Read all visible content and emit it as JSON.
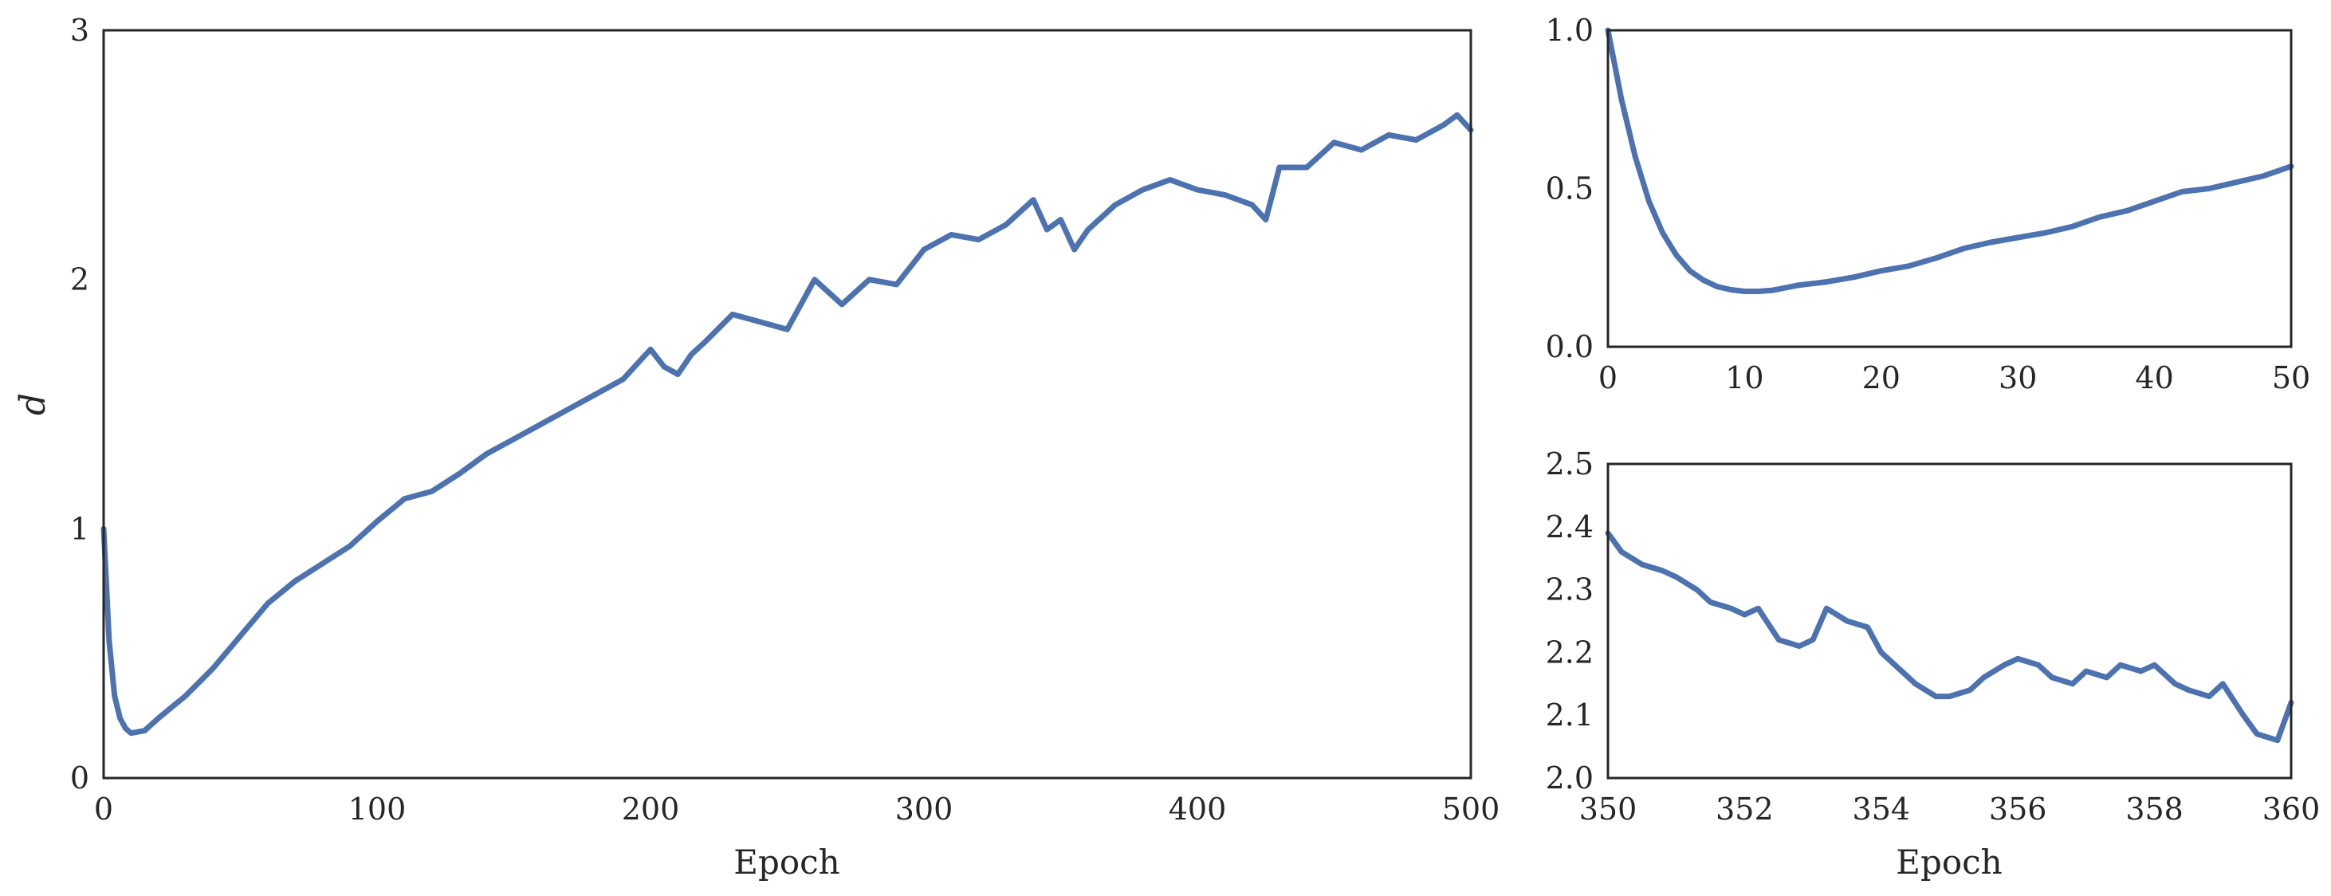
{
  "chart_data": [
    {
      "type": "line",
      "id": "main",
      "xlabel": "Epoch",
      "ylabel": "d",
      "xlim": [
        0,
        500
      ],
      "ylim": [
        0,
        3
      ],
      "xticks": [
        0,
        100,
        200,
        300,
        400,
        500
      ],
      "yticks": [
        0,
        1,
        2,
        3
      ],
      "xtick_labels": [
        "0",
        "100",
        "200",
        "300",
        "400",
        "500"
      ],
      "ytick_labels": [
        "0",
        "1",
        "2",
        "3"
      ],
      "grid": false,
      "series": [
        {
          "color": "#4c72b0",
          "x": [
            0,
            2,
            4,
            6,
            8,
            10,
            15,
            20,
            30,
            40,
            50,
            60,
            70,
            80,
            90,
            100,
            110,
            120,
            130,
            140,
            150,
            160,
            170,
            180,
            190,
            200,
            205,
            210,
            215,
            220,
            230,
            240,
            250,
            260,
            270,
            280,
            290,
            300,
            310,
            320,
            330,
            340,
            345,
            350,
            355,
            360,
            370,
            380,
            390,
            400,
            410,
            420,
            425,
            430,
            440,
            450,
            460,
            470,
            480,
            490,
            495,
            500
          ],
          "y": [
            1.0,
            0.55,
            0.33,
            0.24,
            0.2,
            0.18,
            0.19,
            0.24,
            0.33,
            0.44,
            0.57,
            0.7,
            0.79,
            0.86,
            0.93,
            1.03,
            1.12,
            1.15,
            1.22,
            1.3,
            1.36,
            1.42,
            1.48,
            1.54,
            1.6,
            1.72,
            1.65,
            1.62,
            1.7,
            1.75,
            1.86,
            1.83,
            1.8,
            2.0,
            1.9,
            2.0,
            1.98,
            2.12,
            2.18,
            2.16,
            2.22,
            2.32,
            2.2,
            2.24,
            2.12,
            2.2,
            2.3,
            2.36,
            2.4,
            2.36,
            2.34,
            2.3,
            2.24,
            2.45,
            2.45,
            2.55,
            2.52,
            2.58,
            2.56,
            2.62,
            2.66,
            2.6
          ]
        }
      ]
    },
    {
      "type": "line",
      "id": "inset-top",
      "xlabel": "",
      "ylabel": "",
      "xlim": [
        0,
        50
      ],
      "ylim": [
        0.0,
        1.0
      ],
      "xticks": [
        0,
        10,
        20,
        30,
        40,
        50
      ],
      "yticks": [
        0.0,
        0.5,
        1.0
      ],
      "xtick_labels": [
        "0",
        "10",
        "20",
        "30",
        "40",
        "50"
      ],
      "ytick_labels": [
        "0.0",
        "0.5",
        "1.0"
      ],
      "grid": false,
      "series": [
        {
          "color": "#4c72b0",
          "x": [
            0,
            1,
            2,
            3,
            4,
            5,
            6,
            7,
            8,
            9,
            10,
            11,
            12,
            14,
            16,
            18,
            20,
            22,
            24,
            26,
            28,
            30,
            32,
            34,
            36,
            38,
            40,
            42,
            44,
            46,
            48,
            50
          ],
          "y": [
            1.0,
            0.78,
            0.6,
            0.46,
            0.36,
            0.29,
            0.24,
            0.21,
            0.19,
            0.18,
            0.175,
            0.175,
            0.178,
            0.195,
            0.205,
            0.22,
            0.24,
            0.255,
            0.28,
            0.31,
            0.33,
            0.345,
            0.36,
            0.38,
            0.41,
            0.43,
            0.46,
            0.49,
            0.5,
            0.52,
            0.54,
            0.57
          ]
        }
      ]
    },
    {
      "type": "line",
      "id": "inset-bottom",
      "xlabel": "Epoch",
      "ylabel": "",
      "xlim": [
        350,
        360
      ],
      "ylim": [
        2.0,
        2.5
      ],
      "xticks": [
        350,
        352,
        354,
        356,
        358,
        360
      ],
      "yticks": [
        2.0,
        2.1,
        2.2,
        2.3,
        2.4,
        2.5
      ],
      "xtick_labels": [
        "350",
        "352",
        "354",
        "356",
        "358",
        "360"
      ],
      "ytick_labels": [
        "2.0",
        "2.1",
        "2.2",
        "2.3",
        "2.4",
        "2.5"
      ],
      "grid": false,
      "series": [
        {
          "color": "#4c72b0",
          "x": [
            350.0,
            350.2,
            350.5,
            350.8,
            351.0,
            351.3,
            351.5,
            351.8,
            352.0,
            352.2,
            352.5,
            352.8,
            353.0,
            353.2,
            353.5,
            353.8,
            354.0,
            354.3,
            354.5,
            354.8,
            355.0,
            355.3,
            355.5,
            355.8,
            356.0,
            356.3,
            356.5,
            356.8,
            357.0,
            357.3,
            357.5,
            357.8,
            358.0,
            358.3,
            358.5,
            358.8,
            359.0,
            359.3,
            359.5,
            359.8,
            360.0
          ],
          "y": [
            2.39,
            2.36,
            2.34,
            2.33,
            2.32,
            2.3,
            2.28,
            2.27,
            2.26,
            2.27,
            2.22,
            2.21,
            2.22,
            2.27,
            2.25,
            2.24,
            2.2,
            2.17,
            2.15,
            2.13,
            2.13,
            2.14,
            2.16,
            2.18,
            2.19,
            2.18,
            2.16,
            2.15,
            2.17,
            2.16,
            2.18,
            2.17,
            2.18,
            2.15,
            2.14,
            2.13,
            2.15,
            2.1,
            2.07,
            2.06,
            2.12
          ]
        }
      ]
    }
  ]
}
